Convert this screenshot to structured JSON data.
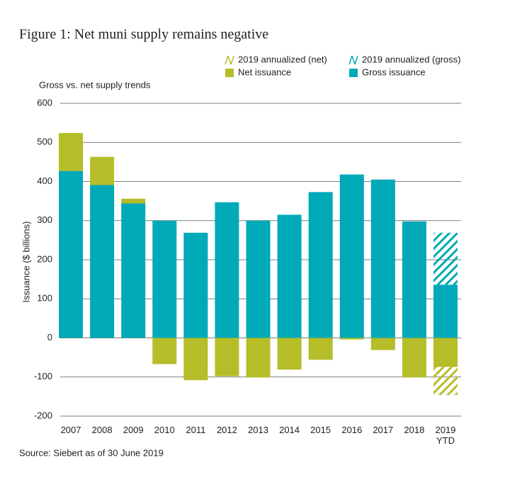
{
  "chart_data": {
    "type": "bar",
    "title": "Figure 1: Net muni supply remains negative",
    "subtitle": "Gross vs. net supply trends",
    "y_label": "Issuance ($ billions)",
    "source": "Source: Siebert as of 30 June 2019",
    "categories": [
      "2007",
      "2008",
      "2009",
      "2010",
      "2011",
      "2012",
      "2013",
      "2014",
      "2015",
      "2016",
      "2017",
      "2018",
      "2019\nYTD"
    ],
    "series": [
      {
        "name": "Gross issuance",
        "color": "#00a9b7",
        "values": [
          427,
          391,
          344,
          300,
          269,
          347,
          300,
          315,
          373,
          418,
          405,
          298,
          136
        ]
      },
      {
        "name": "Net issuance",
        "color": "#b5bd28",
        "values": [
          97,
          72,
          12,
          -67,
          -108,
          -98,
          -101,
          -81,
          -56,
          -4,
          -31,
          -101,
          -74
        ]
      },
      {
        "name": "2019 annualized (gross)",
        "color": "#00a9b7",
        "style": "hatched",
        "values": [
          null,
          null,
          null,
          null,
          null,
          null,
          null,
          null,
          null,
          null,
          null,
          null,
          269
        ]
      },
      {
        "name": "2019 annualized (net)",
        "color": "#b5bd28",
        "style": "hatched",
        "values": [
          null,
          null,
          null,
          null,
          null,
          null,
          null,
          null,
          null,
          null,
          null,
          null,
          -146
        ]
      }
    ],
    "ylim": [
      -200,
      600
    ],
    "yticks": [
      -200,
      -100,
      0,
      100,
      200,
      300,
      400,
      500,
      600
    ],
    "grid": true
  }
}
